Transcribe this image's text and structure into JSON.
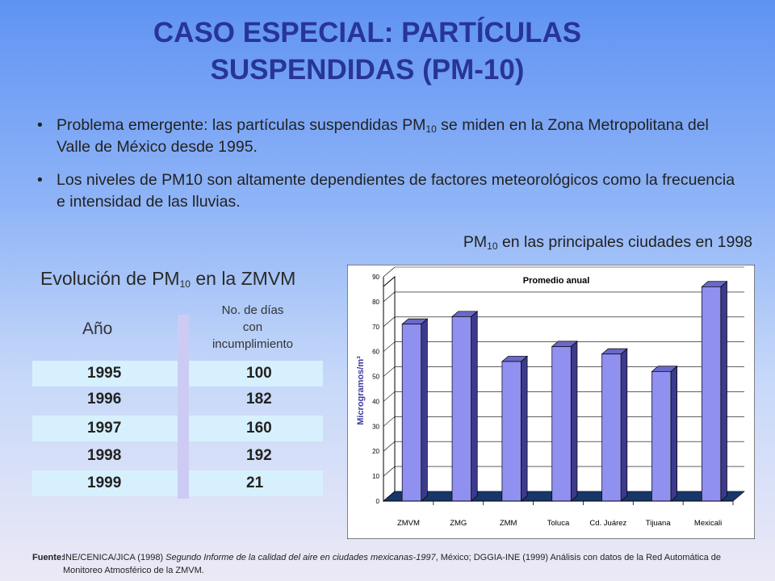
{
  "title": {
    "line1": "CASO ESPECIAL: PARTÍCULAS",
    "line2": "SUSPENDIDAS (PM-10)"
  },
  "bullets": [
    {
      "pre": "Problema emergente: las partículas suspendidas PM",
      "sub": "10",
      "post": " se miden en la Zona Metropolitana del Valle de México desde 1995."
    },
    {
      "pre": "Los niveles de PM10 son altamente dependientes de factores meteorológicos como la frecuencia e intensidad de las lluvias.",
      "sub": "",
      "post": ""
    }
  ],
  "chart_heading": {
    "pre": "PM",
    "sub": "10",
    "post": " en las principales ciudades en 1998"
  },
  "table": {
    "title_pre": "Evolución de PM",
    "title_sub": "10",
    "title_post": " en la ZMVM",
    "col_year": "Año",
    "col_days_lines": [
      "No. de días",
      "con",
      "incumplimiento"
    ],
    "rows": [
      {
        "year": "1995",
        "days": "100"
      },
      {
        "year": "1996",
        "days": "182"
      },
      {
        "year": "1997",
        "days": "160"
      },
      {
        "year": "1998",
        "days": "192"
      },
      {
        "year": "1999",
        "days": "21"
      }
    ]
  },
  "chart_data": {
    "type": "bar",
    "title": "Promedio anual",
    "ylabel": "Microgramos/m³",
    "xlabel": "",
    "categories": [
      "ZMVM",
      "ZMG",
      "ZMM",
      "Toluca",
      "Cd. Juárez",
      "Tijuana",
      "Mexicali"
    ],
    "values": [
      71,
      74,
      56,
      62,
      59,
      52,
      86
    ],
    "ylim": [
      0,
      90
    ],
    "yticks": [
      0,
      10,
      20,
      30,
      40,
      50,
      60,
      70,
      80,
      90
    ],
    "grid": true,
    "bar_color": "#9090f0",
    "bar_side_color": "#3c3a8a",
    "floor_color": "#17376a"
  },
  "footer": {
    "label": "Fuente:",
    "part1": "INE/CENICA/JICA (1998) ",
    "part2_italic": "Segundo Informe de la calidad del aire en ciudades mexicanas-1997",
    "part3": ", México; DGGIA-INE (1999) Análisis con datos de la Red Automática de Monitoreo Atmosférico de la ZMVM."
  }
}
